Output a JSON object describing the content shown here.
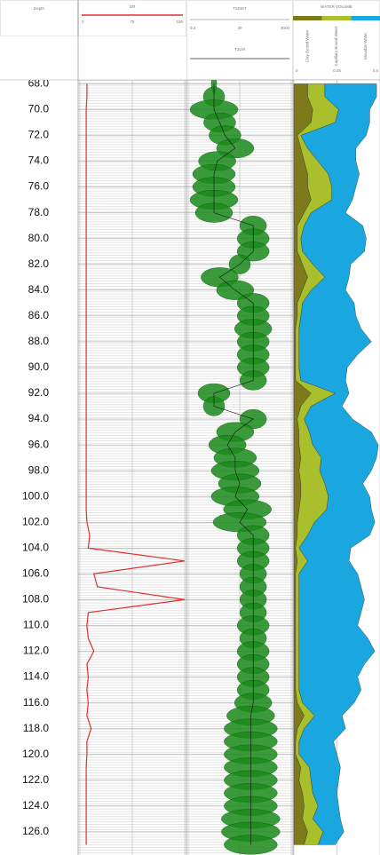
{
  "chart_data": {
    "type": "well_log",
    "depth_title": "Depth",
    "depth": [
      68,
      69,
      70,
      71,
      72,
      73,
      74,
      75,
      76,
      77,
      78,
      79,
      80,
      81,
      82,
      83,
      84,
      85,
      86,
      87,
      88,
      89,
      90,
      91,
      92,
      93,
      94,
      95,
      96,
      97,
      98,
      99,
      100,
      101,
      102,
      103,
      104,
      105,
      106,
      107,
      108,
      109,
      110,
      111,
      112,
      113,
      114,
      115,
      116,
      117,
      118,
      119,
      120,
      121,
      122,
      123,
      124,
      125,
      126,
      127
    ],
    "ylim": [
      67.7,
      127.8
    ],
    "yticks": [
      {
        "value": 68,
        "label": "68.0"
      },
      {
        "value": 70,
        "label": "70.0"
      },
      {
        "value": 72,
        "label": "72.0"
      },
      {
        "value": 74,
        "label": "74.0"
      },
      {
        "value": 76,
        "label": "76.0"
      },
      {
        "value": 78,
        "label": "78.0"
      },
      {
        "value": 80,
        "label": "80.0"
      },
      {
        "value": 82,
        "label": "82.0"
      },
      {
        "value": 84,
        "label": "84.0"
      },
      {
        "value": 86,
        "label": "86.0"
      },
      {
        "value": 88,
        "label": "88.0"
      },
      {
        "value": 90,
        "label": "90.0"
      },
      {
        "value": 92,
        "label": "92.0"
      },
      {
        "value": 94,
        "label": "94.0"
      },
      {
        "value": 96,
        "label": "96.0"
      },
      {
        "value": 98,
        "label": "98.0"
      },
      {
        "value": 100,
        "label": "100.0"
      },
      {
        "value": 102,
        "label": "102.0"
      },
      {
        "value": 104,
        "label": "104.0"
      },
      {
        "value": 106,
        "label": "106.0"
      },
      {
        "value": 108,
        "label": "108.0"
      },
      {
        "value": 110,
        "label": "110.0"
      },
      {
        "value": 112,
        "label": "112.0"
      },
      {
        "value": 114,
        "label": "114.0"
      },
      {
        "value": 116,
        "label": "116.0"
      },
      {
        "value": 118,
        "label": "118.0"
      },
      {
        "value": 120,
        "label": "120.0"
      },
      {
        "value": 122,
        "label": "122.0"
      },
      {
        "value": 124,
        "label": "124.0"
      },
      {
        "value": 126,
        "label": "126.0"
      }
    ],
    "tracks": [
      {
        "type": "line",
        "title": "GR",
        "color": "#e03030",
        "xlim": [
          0,
          150
        ],
        "xticks": [
          0,
          75,
          150
        ],
        "values": [
          10,
          10,
          9,
          9,
          9,
          9,
          9,
          9,
          9,
          9,
          9,
          9,
          9,
          9,
          9,
          9,
          9,
          9,
          9,
          9,
          9,
          9,
          9,
          9,
          9,
          9,
          9,
          9,
          9,
          9,
          9,
          9,
          9,
          9,
          10,
          14,
          12,
          150,
          20,
          25,
          150,
          12,
          10,
          12,
          20,
          10,
          12,
          10,
          12,
          10,
          16,
          10,
          10,
          9,
          9,
          9,
          9,
          9,
          9,
          9
        ]
      },
      {
        "type": "t2",
        "title": "T2DIST",
        "subtitle": "T2LM",
        "color": "#1a8a1a",
        "log": true,
        "xlim": [
          0.3,
          3000
        ],
        "xticks": [
          0.3,
          30,
          3000
        ],
        "t2lm": [
          3,
          3,
          3,
          5,
          8,
          20,
          4,
          3,
          3,
          3,
          3,
          100,
          100,
          100,
          30,
          5,
          20,
          100,
          100,
          100,
          100,
          100,
          100,
          100,
          3,
          3,
          100,
          20,
          10,
          20,
          20,
          30,
          20,
          60,
          30,
          100,
          100,
          100,
          100,
          100,
          100,
          100,
          100,
          100,
          100,
          100,
          100,
          100,
          100,
          80,
          80,
          80,
          80,
          80,
          80,
          80,
          80,
          80,
          80,
          80
        ],
        "amplitude": [
          0.05,
          0.2,
          0.45,
          0.3,
          0.3,
          0.35,
          0.35,
          0.4,
          0.4,
          0.45,
          0.35,
          0.25,
          0.3,
          0.3,
          0.2,
          0.35,
          0.35,
          0.3,
          0.3,
          0.35,
          0.3,
          0.3,
          0.3,
          0.25,
          0.3,
          0.2,
          0.25,
          0.35,
          0.35,
          0.4,
          0.45,
          0.4,
          0.45,
          0.45,
          0.5,
          0.3,
          0.3,
          0.3,
          0.25,
          0.25,
          0.25,
          0.25,
          0.3,
          0.25,
          0.3,
          0.3,
          0.3,
          0.3,
          0.35,
          0.45,
          0.5,
          0.5,
          0.5,
          0.5,
          0.5,
          0.5,
          0.5,
          0.55,
          0.55,
          0.5
        ]
      },
      {
        "type": "stacked_area",
        "title": "WATER VOLUME",
        "xlim": [
          0,
          0.5
        ],
        "xticks": [
          0,
          0.25,
          0.5
        ],
        "series": [
          {
            "name": "Clay Bound Water",
            "color": "#7d7a1c",
            "values": [
              0.08,
              0.08,
              0.11,
              0.1,
              0.02,
              0.04,
              0.06,
              0.08,
              0.08,
              0.1,
              0.06,
              0.02,
              0.02,
              0.02,
              0.05,
              0.08,
              0.05,
              0.02,
              0.02,
              0.01,
              0.01,
              0.01,
              0.01,
              0.01,
              0.1,
              0.04,
              0.02,
              0.03,
              0.03,
              0.04,
              0.03,
              0.04,
              0.04,
              0.03,
              0.02,
              0.02,
              0.01,
              0.02,
              0.01,
              0.01,
              0.01,
              0.01,
              0.01,
              0.01,
              0.01,
              0.01,
              0.01,
              0.01,
              0.02,
              0.06,
              0.02,
              0.01,
              0.01,
              0.04,
              0.03,
              0.05,
              0.06,
              0.05,
              0.08,
              0.06
            ]
          },
          {
            "name": "Capillary Bound Water",
            "color": "#a9c02c",
            "values": [
              0.1,
              0.1,
              0.15,
              0.14,
              0.02,
              0.04,
              0.08,
              0.12,
              0.14,
              0.12,
              0.04,
              0.04,
              0.02,
              0.03,
              0.06,
              0.1,
              0.05,
              0.03,
              0.02,
              0.02,
              0.02,
              0.02,
              0.02,
              0.03,
              0.14,
              0.06,
              0.04,
              0.06,
              0.08,
              0.12,
              0.12,
              0.14,
              0.16,
              0.16,
              0.1,
              0.06,
              0.02,
              0.06,
              0.02,
              0.02,
              0.02,
              0.02,
              0.02,
              0.02,
              0.02,
              0.02,
              0.02,
              0.02,
              0.03,
              0.06,
              0.04,
              0.02,
              0.02,
              0.05,
              0.07,
              0.06,
              0.08,
              0.06,
              0.09,
              0.08
            ]
          },
          {
            "name": "Movable Water",
            "color": "#1aa7df",
            "values": [
              0.3,
              0.3,
              0.18,
              0.2,
              0.38,
              0.28,
              0.22,
              0.18,
              0.14,
              0.12,
              0.2,
              0.34,
              0.38,
              0.36,
              0.22,
              0.14,
              0.2,
              0.3,
              0.32,
              0.36,
              0.42,
              0.34,
              0.28,
              0.26,
              0.08,
              0.18,
              0.28,
              0.36,
              0.38,
              0.32,
              0.3,
              0.22,
              0.24,
              0.26,
              0.35,
              0.36,
              0.3,
              0.24,
              0.34,
              0.36,
              0.38,
              0.36,
              0.34,
              0.4,
              0.44,
              0.38,
              0.34,
              0.36,
              0.3,
              0.16,
              0.24,
              0.2,
              0.22,
              0.18,
              0.16,
              0.14,
              0.12,
              0.16,
              0.12,
              0.1
            ]
          }
        ]
      }
    ]
  }
}
